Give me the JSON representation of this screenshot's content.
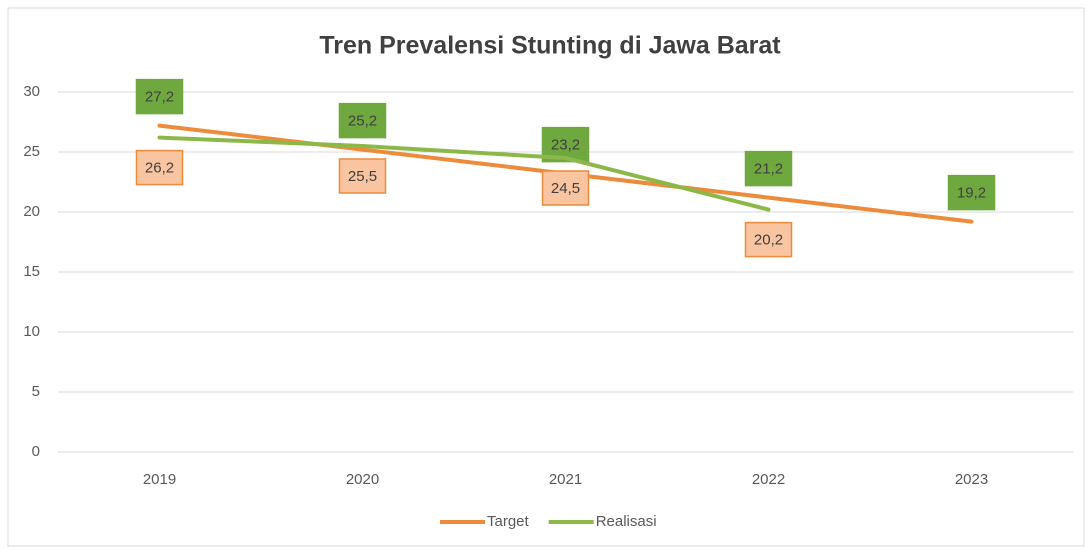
{
  "chart_data": {
    "type": "line",
    "title": "Tren Prevalensi Stunting di Jawa Barat",
    "categories": [
      "2019",
      "2020",
      "2021",
      "2022",
      "2023"
    ],
    "series": [
      {
        "name": "Target",
        "color": "#ed8b3c",
        "label_fill": "#70a840",
        "label_stroke": "#70a840",
        "values": [
          27.2,
          25.2,
          23.2,
          21.2,
          19.2
        ],
        "value_labels": [
          "27,2",
          "25,2",
          "23,2",
          "21,2",
          "19,2"
        ]
      },
      {
        "name": "Realisasi",
        "color": "#8cb84a",
        "label_fill": "#f8c5a0",
        "label_stroke": "#ed8b3c",
        "values": [
          26.2,
          25.5,
          24.5,
          20.2,
          null
        ],
        "value_labels": [
          "26,2",
          "25,5",
          "24,5",
          "20,2",
          null
        ]
      }
    ],
    "ylim": [
      0,
      30
    ],
    "yticks": [
      0,
      5,
      10,
      15,
      20,
      25,
      30
    ],
    "grid": true,
    "legend": "bottom"
  }
}
